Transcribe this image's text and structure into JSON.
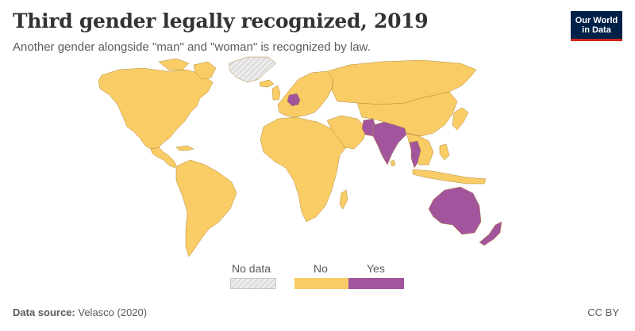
{
  "header": {
    "title": "Third gender legally recognized, 2019",
    "subtitle": "Another gender alongside \"man\" and \"woman\" is recognized by law."
  },
  "logo": {
    "line1": "Our World",
    "line2": "in Data",
    "bg_color": "#002147",
    "accent_color": "#ce261e"
  },
  "legend": {
    "items": [
      {
        "label": "No data",
        "color": "#e6e6e6",
        "pattern": "hatched"
      },
      {
        "label": "No",
        "color": "#f9cc66"
      },
      {
        "label": "Yes",
        "color": "#a2559c"
      }
    ]
  },
  "map": {
    "colors": {
      "no": "#f9cc66",
      "yes": "#a2559c",
      "no_data": "#e6e6e6",
      "border": "#b08a3a"
    },
    "countries_yes": [
      "India",
      "Nepal",
      "Pakistan",
      "Bangladesh",
      "Thailand",
      "Australia",
      "New Zealand",
      "Germany"
    ],
    "regions_no_data": [
      "Greenland"
    ]
  },
  "footer": {
    "source_label": "Data source:",
    "source_value": "Velasco (2020)",
    "license": "CC BY"
  }
}
